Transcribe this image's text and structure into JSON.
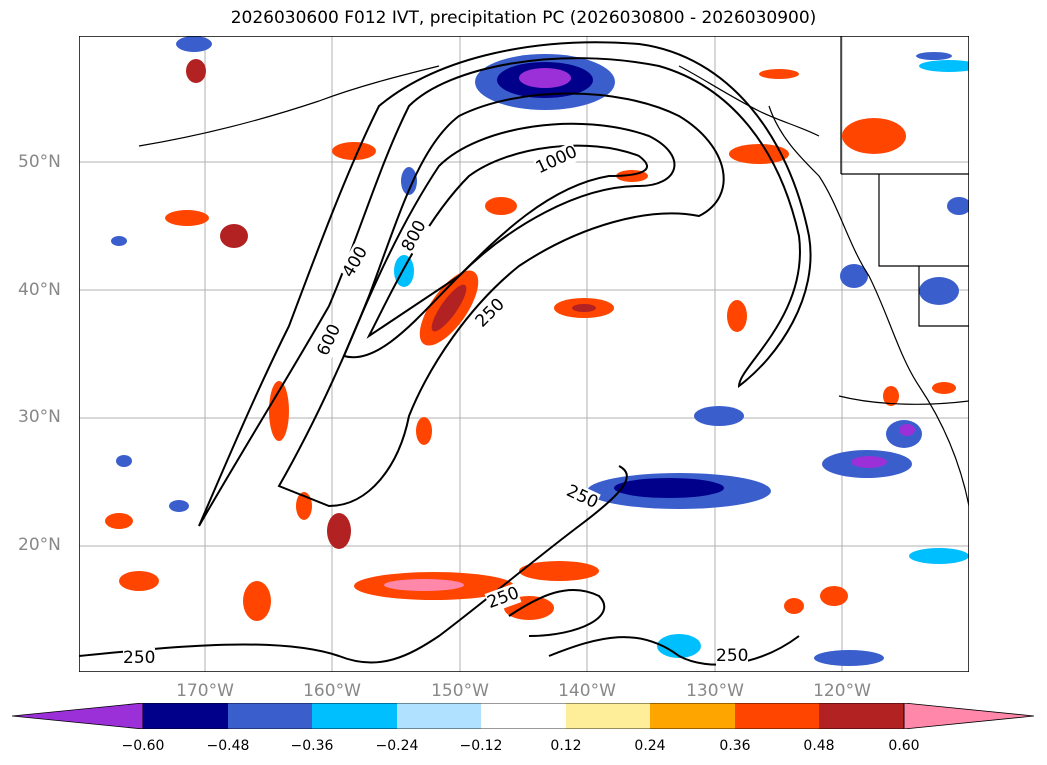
{
  "title": "2026030600 F012 IVT, precipitation PC (2026030800 - 2026030900)",
  "map": {
    "lat_labels": [
      "50°N",
      "40°N",
      "30°N",
      "20°N"
    ],
    "lon_labels": [
      "170°W",
      "160°W",
      "150°W",
      "140°W",
      "130°W",
      "120°W"
    ],
    "contour_labels": [
      "1000",
      "800",
      "600",
      "400",
      "250",
      "250",
      "250",
      "250",
      "250"
    ]
  },
  "colorbar": {
    "ticks": [
      "−0.60",
      "−0.48",
      "−0.36",
      "−0.24",
      "−0.12",
      "0.12",
      "0.24",
      "0.36",
      "0.48",
      "0.60"
    ],
    "colors": [
      "#9b30d8",
      "#00008b",
      "#3a5fcd",
      "#00bfff",
      "#b0e2ff",
      "#ffffff",
      "#ffee99",
      "#ffa500",
      "#ff4500",
      "#b22222",
      "#ff88aa"
    ]
  }
}
